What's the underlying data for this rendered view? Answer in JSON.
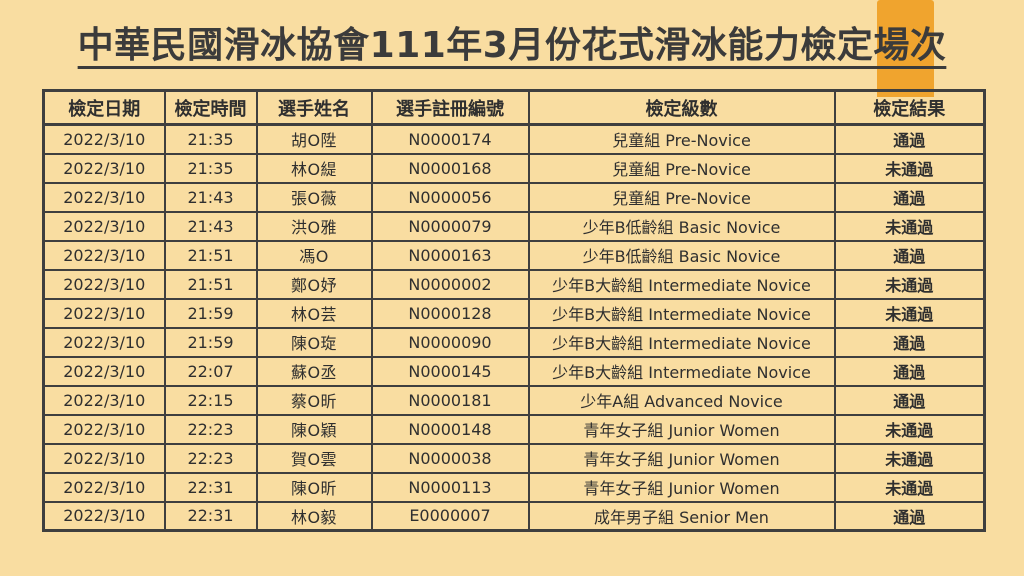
{
  "page": {
    "title": "中華民國滑冰協會111年3月份花式滑冰能力檢定場次",
    "background_color": "#F9DDA1",
    "accent_stripe_color": "#F0A42E",
    "border_color": "#3F3F3F",
    "text_color": "#2F2F2F"
  },
  "table": {
    "headers": [
      "檢定日期",
      "檢定時間",
      "選手姓名",
      "選手註冊編號",
      "檢定級數",
      "檢定結果"
    ],
    "rows": [
      [
        "2022/3/10",
        "21:35",
        "胡O陞",
        "N0000174",
        "兒童組  Pre-Novice",
        "通過"
      ],
      [
        "2022/3/10",
        "21:35",
        "林O緹",
        "N0000168",
        "兒童組  Pre-Novice",
        "未通過"
      ],
      [
        "2022/3/10",
        "21:43",
        "張O薇",
        "N0000056",
        "兒童組 Pre-Novice",
        "通過"
      ],
      [
        "2022/3/10",
        "21:43",
        "洪O雅",
        "N0000079",
        "少年B低齡組 Basic Novice",
        "未通過"
      ],
      [
        "2022/3/10",
        "21:51",
        "馮O",
        "N0000163",
        "少年B低齡組 Basic Novice",
        "通過"
      ],
      [
        "2022/3/10",
        "21:51",
        "鄭O妤",
        "N0000002",
        "少年B大齡組 Intermediate Novice",
        "未通過"
      ],
      [
        "2022/3/10",
        "21:59",
        "林O芸",
        "N0000128",
        "少年B大齡組 Intermediate Novice",
        "未通過"
      ],
      [
        "2022/3/10",
        "21:59",
        "陳O琁",
        "N0000090",
        "少年B大齡組 Intermediate Novice",
        "通過"
      ],
      [
        "2022/3/10",
        "22:07",
        "蘇O丞",
        "N0000145",
        "少年B大齡組 Intermediate Novice",
        "通過"
      ],
      [
        "2022/3/10",
        "22:15",
        "蔡O昕",
        "N0000181",
        "少年A組 Advanced Novice",
        "通過"
      ],
      [
        "2022/3/10",
        "22:23",
        "陳O穎",
        "N0000148",
        "青年女子組 Junior Women",
        "未通過"
      ],
      [
        "2022/3/10",
        "22:23",
        "賀O雲",
        "N0000038",
        "青年女子組 Junior Women",
        "未通過"
      ],
      [
        "2022/3/10",
        "22:31",
        "陳O昕",
        "N0000113",
        "青年女子組 Junior Women",
        "未通過"
      ],
      [
        "2022/3/10",
        "22:31",
        "林O毅",
        "E0000007",
        "成年男子組 Senior Men",
        "通過"
      ]
    ]
  }
}
